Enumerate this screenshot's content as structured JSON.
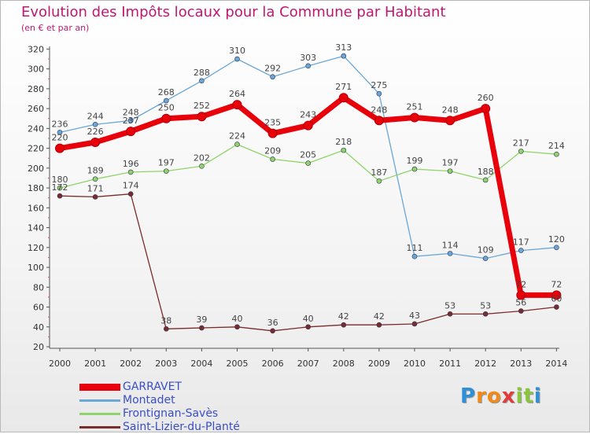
{
  "header": {
    "title": "Evolution des Impôts locaux pour la Commune par Habitant",
    "subtitle": "(en € et par an)"
  },
  "logo": {
    "letters": [
      "P",
      "r",
      "o",
      "x",
      "i",
      "t",
      "i"
    ],
    "colors": [
      "#2f8fd8",
      "#f28a1a",
      "#f28a1a",
      "#e23b3b",
      "#8bc53f",
      "#8bc53f",
      "#2f8fd8"
    ]
  },
  "colors": {
    "title": "#c2176f",
    "legend_text": "#3a4fc4",
    "axis": "#555555",
    "tick_mark": "#d0509a"
  },
  "chart_data": {
    "type": "line",
    "x": [
      "2000",
      "2001",
      "2002",
      "2003",
      "2004",
      "2005",
      "2006",
      "2007",
      "2008",
      "2009",
      "2010",
      "2011",
      "2012",
      "2013",
      "2014"
    ],
    "yticks": [
      20,
      40,
      60,
      80,
      100,
      120,
      140,
      160,
      180,
      200,
      220,
      240,
      260,
      280,
      300,
      320
    ],
    "ylim": [
      20,
      320
    ],
    "grid": false,
    "legend_position": "bottom-left",
    "series": [
      {
        "name": "GARRAVET",
        "color": "#e8000a",
        "values": [
          220,
          226,
          237,
          250,
          252,
          264,
          235,
          243,
          271,
          248,
          251,
          248,
          260,
          72,
          72
        ],
        "labels": [
          "220",
          "226",
          "237",
          "250",
          "252",
          "264",
          "235",
          "243",
          "271",
          "248",
          "251",
          "248",
          "260",
          "72",
          "72"
        ]
      },
      {
        "name": "Montadet",
        "color": "#6aa6d6",
        "values": [
          236,
          244,
          248,
          268,
          288,
          310,
          292,
          303,
          313,
          275,
          111,
          114,
          109,
          117,
          120
        ],
        "labels": [
          "236",
          "244",
          "248",
          "268",
          "288",
          "310",
          "292",
          "303",
          "313",
          "275",
          "111",
          "114",
          "109",
          "117",
          "120"
        ]
      },
      {
        "name": "Frontignan-Savès",
        "color": "#8fd46a",
        "values": [
          180,
          189,
          196,
          197,
          202,
          224,
          209,
          205,
          218,
          187,
          199,
          197,
          188,
          217,
          214
        ],
        "labels": [
          "180",
          "189",
          "196",
          "197",
          "202",
          "224",
          "209",
          "205",
          "218",
          "187",
          "199",
          "197",
          "188",
          "217",
          "214"
        ]
      },
      {
        "name": "Saint-Lizier-du-Planté",
        "color": "#7a2b2b",
        "values": [
          172,
          171,
          174,
          38,
          39,
          40,
          36,
          40,
          42,
          42,
          43,
          53,
          53,
          56,
          60
        ],
        "labels": [
          "172",
          "171",
          "174",
          "38",
          "39",
          "40",
          "36",
          "40",
          "42",
          "42",
          "43",
          "53",
          "53",
          "56",
          "60"
        ]
      }
    ]
  }
}
